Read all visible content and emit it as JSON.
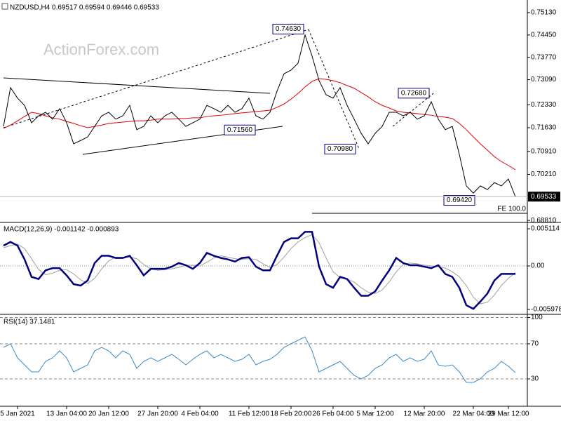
{
  "chart_data": [
    {
      "type": "line",
      "title": "NZDUSD,H4  0.69517 0.69594 0.69446 0.69533",
      "watermark": "ActionForex.com",
      "ylim": [
        0.6877,
        0.7545
      ],
      "yticks": [
        {
          "value": 0.7513,
          "label": "0.75130"
        },
        {
          "value": 0.7445,
          "label": "0.74450"
        },
        {
          "value": 0.7377,
          "label": "0.73770"
        },
        {
          "value": 0.7309,
          "label": "0.73090"
        },
        {
          "value": 0.7233,
          "label": "0.72330"
        },
        {
          "value": 0.7163,
          "label": "0.71630"
        },
        {
          "value": 0.7091,
          "label": "0.70910"
        },
        {
          "value": 0.7021,
          "label": "0.70210"
        },
        {
          "value": 0.6881,
          "label": "0.68810"
        }
      ],
      "annotations": [
        "0.74630",
        "0.72680",
        "0.71560",
        "0.70980",
        "0.69420"
      ],
      "last_label": "0.69533",
      "fe_label": "FE 100.0",
      "series": [
        {
          "color": "#000000",
          "values": [
            0.7167,
            0.7285,
            0.7253,
            0.7231,
            0.7178,
            0.7199,
            0.721,
            0.7189,
            0.7221,
            0.7178,
            0.7114,
            0.7124,
            0.7135,
            0.7167,
            0.7199,
            0.721,
            0.7189,
            0.7199,
            0.7231,
            0.7157,
            0.7167,
            0.7199,
            0.7178,
            0.7199,
            0.721,
            0.7189,
            0.7167,
            0.7178,
            0.7189,
            0.7231,
            0.7221,
            0.721,
            0.7231,
            0.721,
            0.7221,
            0.7253,
            0.7199,
            0.7189,
            0.721,
            0.7274,
            0.7327,
            0.7338,
            0.7359,
            0.7445,
            0.7381,
            0.7306,
            0.7263,
            0.7253,
            0.7285,
            0.7231,
            0.7189,
            0.7146,
            0.7114,
            0.7146,
            0.7167,
            0.721,
            0.721,
            0.7199,
            0.721,
            0.7189,
            0.7199,
            0.7242,
            0.7189,
            0.7157,
            0.7167,
            0.7082,
            0.6986,
            0.6964,
            0.6986,
            0.6975,
            0.6996,
            0.6986,
            0.7007,
            0.6953
          ]
        },
        {
          "color": "#e00000",
          "values": [
            0.7161,
            0.7171,
            0.7184,
            0.7197,
            0.721,
            0.7206,
            0.7199,
            0.7193,
            0.7189,
            0.7182,
            0.7176,
            0.7169,
            0.7163,
            0.7167,
            0.7171,
            0.7176,
            0.7178,
            0.718,
            0.7182,
            0.7184,
            0.7184,
            0.7186,
            0.7189,
            0.7189,
            0.7189,
            0.7191,
            0.7191,
            0.7193,
            0.7193,
            0.7197,
            0.7199,
            0.7201,
            0.7203,
            0.7206,
            0.7208,
            0.721,
            0.7212,
            0.7214,
            0.7216,
            0.7225,
            0.7235,
            0.725,
            0.7267,
            0.7287,
            0.7304,
            0.7312,
            0.731,
            0.7306,
            0.73,
            0.7291,
            0.7283,
            0.727,
            0.7257,
            0.7242,
            0.7231,
            0.7223,
            0.7214,
            0.721,
            0.7208,
            0.7206,
            0.7203,
            0.7201,
            0.7197,
            0.7195,
            0.7191,
            0.7176,
            0.7157,
            0.7135,
            0.7114,
            0.7095,
            0.7075,
            0.706,
            0.7048,
            0.7035
          ]
        }
      ]
    },
    {
      "type": "line",
      "title": "MACD(12,26,9) -0.001142 -0.000893",
      "ylim": [
        -0.00656,
        0.00589
      ],
      "yticks": [
        0.005114,
        {
          "value": 0,
          "label": "0.00"
        },
        -0.005978
      ],
      "zero_line": true,
      "series": [
        {
          "color": "#000080",
          "values": [
            0.0028,
            0.0033,
            0.0028,
            0.0009,
            -0.0015,
            -0.0018,
            -0.0006,
            -0.0003,
            -0.0003,
            -0.0013,
            -0.0025,
            -0.0027,
            -0.002,
            0.0004,
            0.0014,
            0.0014,
            0.0011,
            0.0011,
            0.0014,
            0.0001,
            -0.0013,
            -0.0004,
            -0.0004,
            -0.0004,
            -0.0001,
            0.0004,
            0.0001,
            -0.0004,
            0.0004,
            0.0018,
            0.0014,
            0.0011,
            0.0009,
            0.0006,
            0.0011,
            0.0012,
            -0.0001,
            -0.0006,
            -0.0006,
            0.0014,
            0.0033,
            0.0038,
            0.0038,
            0.0047,
            0.0047,
            -0.0001,
            -0.0025,
            -0.003,
            -0.0015,
            -0.0018,
            -0.003,
            -0.0041,
            -0.0041,
            -0.0035,
            -0.002,
            -0.0006,
            0.0011,
            0.0004,
            0.0001,
            0.0001,
            -0.0001,
            -0.0003,
            0.0001,
            -0.0011,
            -0.0015,
            -0.003,
            -0.0054,
            -0.0059,
            -0.0049,
            -0.0038,
            -0.002,
            -0.0011,
            -0.0011,
            -0.0011
          ]
        },
        {
          "color": "#a0a0a0",
          "values": [
            0.0025,
            0.0028,
            0.003,
            0.0024,
            0.001,
            -0.0005,
            -0.0012,
            -0.001,
            -0.0006,
            -0.0005,
            -0.0011,
            -0.0019,
            -0.0024,
            -0.0017,
            -0.0004,
            0.0007,
            0.0012,
            0.0012,
            0.0012,
            0.001,
            0.0002,
            -0.0004,
            -0.0006,
            -0.0005,
            -0.0004,
            -0.0002,
            0.0001,
            0.0001,
            0.0,
            0.0005,
            0.0011,
            0.0014,
            0.0012,
            0.001,
            0.0009,
            0.001,
            0.0009,
            0.0003,
            -0.0002,
            0.0002,
            0.0012,
            0.0024,
            0.0033,
            0.0039,
            0.0043,
            0.0032,
            0.0011,
            -0.0008,
            -0.0016,
            -0.0018,
            -0.0022,
            -0.003,
            -0.0036,
            -0.0038,
            -0.0033,
            -0.0022,
            -0.0008,
            0.0002,
            0.0004,
            0.0003,
            0.0001,
            0.0,
            -0.0001,
            -0.0003,
            -0.0008,
            -0.0015,
            -0.0027,
            -0.0043,
            -0.0052,
            -0.005,
            -0.004,
            -0.0027,
            -0.0017,
            -0.0009
          ]
        }
      ]
    },
    {
      "type": "line",
      "title": "RSI(14) 37.1481",
      "ylim": [
        0,
        100
      ],
      "yticks": [
        100,
        70,
        30
      ],
      "grid": true,
      "categories": [
        null,
        null,
        "5 Jan 2021",
        null,
        null,
        null,
        null,
        null,
        null,
        "13 Jan 04:00",
        null,
        null,
        null,
        null,
        null,
        "20 Jan 12:00",
        null,
        null,
        null,
        null,
        null,
        null,
        "27 Jan 20:00",
        null,
        null,
        null,
        null,
        null,
        "4 Feb 04:00",
        null,
        null,
        null,
        null,
        null,
        null,
        "11 Feb 12:00",
        null,
        null,
        null,
        null,
        null,
        "18 Feb 20:00",
        null,
        null,
        null,
        null,
        null,
        "26 Feb 04:00",
        null,
        null,
        null,
        null,
        null,
        "5 Mar 12:00",
        null,
        null,
        null,
        null,
        null,
        null,
        "12 Mar 20:00",
        null,
        null,
        null,
        null,
        null,
        null,
        "22 Mar 04:00",
        null,
        null,
        null,
        null,
        "29 Mar 12:00",
        null
      ],
      "series": [
        {
          "color": "#3a8ac8",
          "values": [
            66,
            70,
            54,
            46,
            38,
            38,
            50,
            54,
            62,
            54,
            38,
            42,
            46,
            62,
            66,
            62,
            54,
            62,
            58,
            42,
            50,
            54,
            50,
            54,
            58,
            52.4,
            46,
            52.4,
            58,
            62,
            54,
            58,
            54,
            50,
            52.4,
            58,
            46,
            50,
            52.4,
            58,
            66,
            70,
            74,
            78,
            62,
            38,
            42,
            46,
            50,
            42,
            34,
            30,
            34,
            42,
            46,
            54,
            58,
            50,
            54,
            50,
            52.4,
            62,
            46,
            44.4,
            46,
            38,
            26,
            26,
            30,
            38,
            42,
            50,
            44.4,
            37.1
          ]
        }
      ]
    }
  ]
}
